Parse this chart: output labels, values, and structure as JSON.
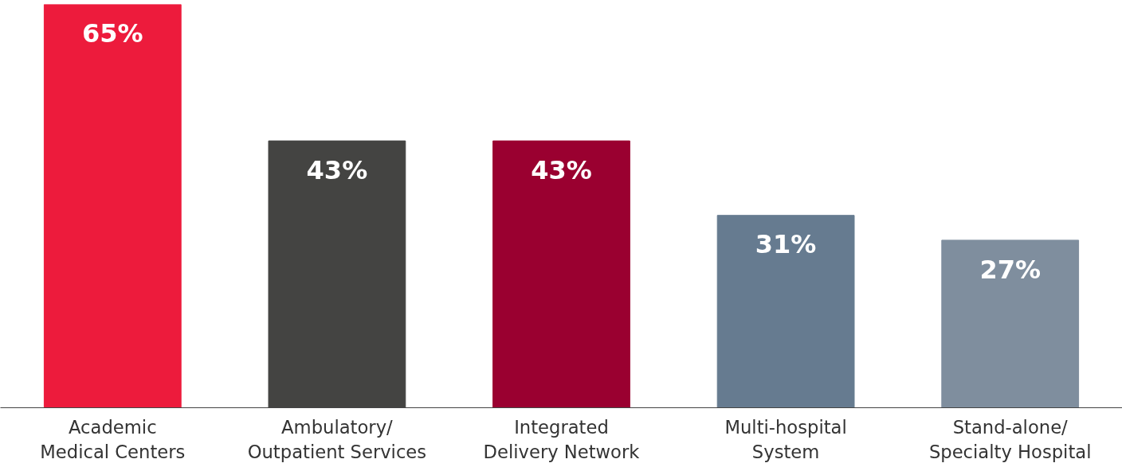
{
  "chart_data": {
    "type": "bar",
    "categories": [
      "Academic\nMedical Centers",
      "Ambulatory/\nOutpatient Services",
      "Integrated\nDelivery Network",
      "Multi-hospital\nSystem",
      "Stand-alone/\nSpecialty Hospital"
    ],
    "values": [
      65,
      43,
      43,
      31,
      27
    ],
    "colors": [
      "#ed1b3c",
      "#444442",
      "#9a0030",
      "#667b90",
      "#7f8e9e"
    ],
    "value_labels": [
      "65%",
      "43%",
      "43%",
      "31%",
      "27%"
    ],
    "grid": false,
    "tick_labels": "x"
  }
}
